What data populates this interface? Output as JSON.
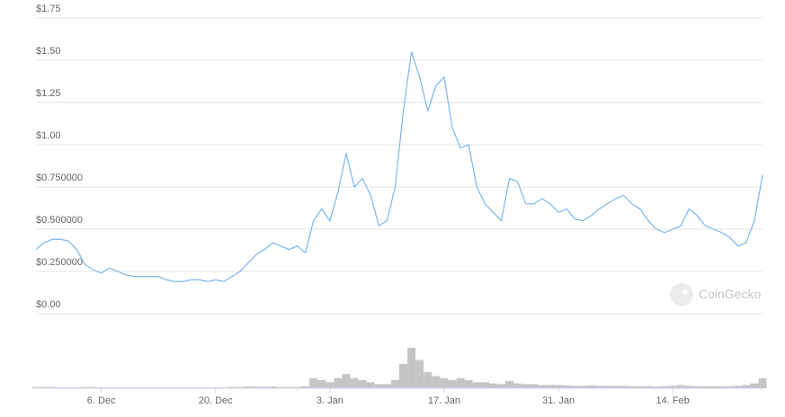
{
  "chart_data": {
    "type": "line",
    "categories": [
      null,
      null,
      null,
      null,
      null,
      null,
      null,
      null,
      "6. Dec",
      null,
      null,
      null,
      null,
      null,
      null,
      null,
      null,
      null,
      null,
      null,
      null,
      null,
      "20. Dec",
      null,
      null,
      null,
      null,
      null,
      null,
      null,
      null,
      null,
      null,
      null,
      null,
      null,
      "3. Jan",
      null,
      null,
      null,
      null,
      null,
      null,
      null,
      null,
      null,
      null,
      null,
      null,
      null,
      "17. Jan",
      null,
      null,
      null,
      null,
      null,
      null,
      null,
      null,
      null,
      null,
      null,
      null,
      null,
      "31. Jan",
      null,
      null,
      null,
      null,
      null,
      null,
      null,
      null,
      null,
      null,
      null,
      null,
      null,
      "14. Feb",
      null,
      null,
      null,
      null,
      null,
      null,
      null,
      null,
      null,
      null,
      null
    ],
    "values": [
      0.38,
      0.42,
      0.44,
      0.44,
      0.43,
      0.38,
      0.29,
      0.26,
      0.24,
      0.27,
      0.25,
      0.23,
      0.22,
      0.22,
      0.22,
      0.22,
      0.2,
      0.19,
      0.19,
      0.2,
      0.2,
      0.19,
      0.2,
      0.19,
      0.22,
      0.25,
      0.3,
      0.35,
      0.38,
      0.42,
      0.4,
      0.38,
      0.4,
      0.36,
      0.55,
      0.62,
      0.55,
      0.72,
      0.95,
      0.75,
      0.8,
      0.7,
      0.52,
      0.55,
      0.75,
      1.2,
      1.55,
      1.4,
      1.2,
      1.35,
      1.4,
      1.1,
      0.98,
      1.0,
      0.75,
      0.65,
      0.6,
      0.55,
      0.8,
      0.78,
      0.65,
      0.65,
      0.68,
      0.65,
      0.6,
      0.62,
      0.56,
      0.55,
      0.58,
      0.62,
      0.65,
      0.68,
      0.7,
      0.65,
      0.62,
      0.55,
      0.5,
      0.48,
      0.5,
      0.52,
      0.62,
      0.58,
      0.52,
      0.5,
      0.48,
      0.45,
      0.4,
      0.42,
      0.55,
      0.82
    ],
    "color": "#7cb5ec",
    "volume": [
      3,
      3,
      3,
      2,
      2,
      2,
      3,
      3,
      2,
      2,
      2,
      2,
      2,
      2,
      2,
      2,
      2,
      2,
      2,
      2,
      2,
      2,
      2,
      2,
      3,
      3,
      4,
      4,
      4,
      4,
      3,
      3,
      3,
      5,
      25,
      20,
      15,
      25,
      35,
      25,
      20,
      15,
      10,
      10,
      20,
      60,
      100,
      70,
      40,
      30,
      25,
      20,
      25,
      20,
      15,
      15,
      12,
      10,
      18,
      12,
      10,
      10,
      8,
      8,
      8,
      7,
      6,
      6,
      7,
      6,
      6,
      6,
      6,
      5,
      5,
      5,
      4,
      5,
      6,
      8,
      6,
      5,
      5,
      5,
      5,
      5,
      6,
      8,
      12,
      25
    ],
    "volume_lim": [
      0,
      100
    ],
    "volume_color": "#c5c5c5",
    "ylim": [
      0,
      1.75
    ],
    "yticks": [
      {
        "value": 0,
        "label": "$0.00"
      },
      {
        "value": 0.25,
        "label": "$0.250000"
      },
      {
        "value": 0.5,
        "label": "$0.500000"
      },
      {
        "value": 0.75,
        "label": "$0.750000"
      },
      {
        "value": 1,
        "label": "$1.00"
      },
      {
        "value": 1.25,
        "label": "$1.25"
      },
      {
        "value": 1.5,
        "label": "$1.50"
      },
      {
        "value": 1.75,
        "label": "$1.75"
      }
    ],
    "grid": true,
    "watermark": "CoinGecko"
  }
}
